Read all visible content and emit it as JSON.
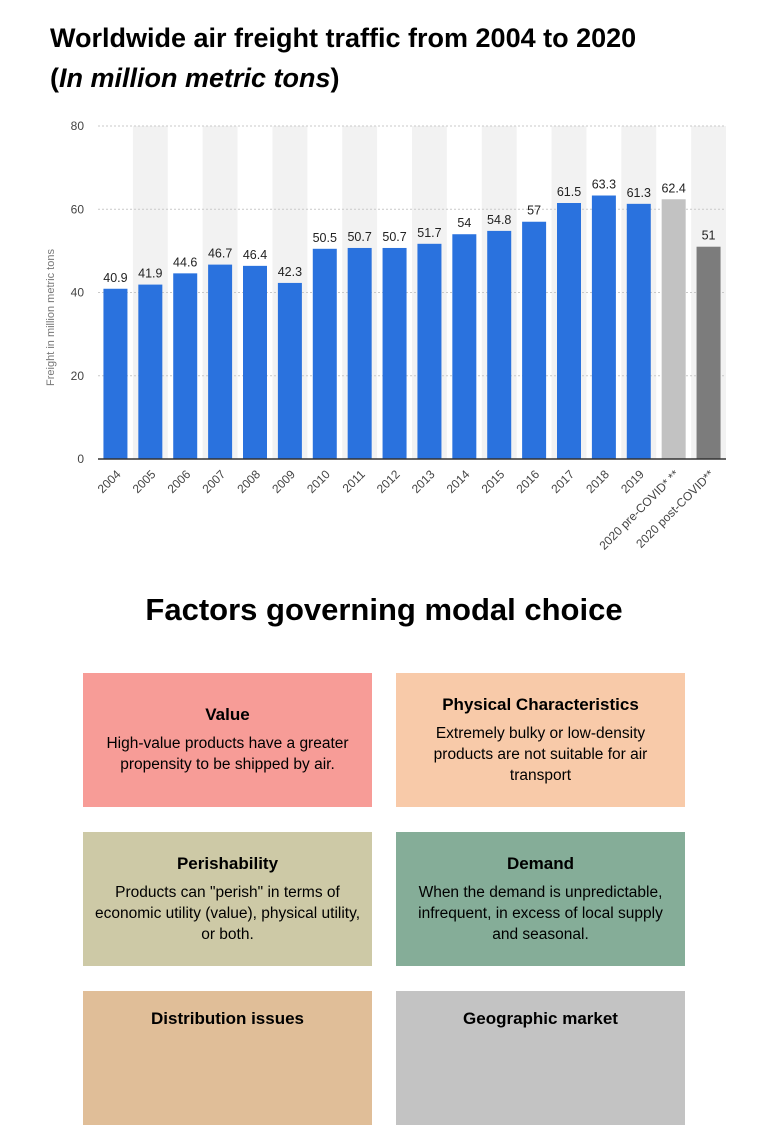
{
  "header": {
    "title_line1": "Worldwide air freight traffic from 2004 to 2020",
    "paren_open": "(",
    "title_line2": "In million metric tons",
    "paren_close": ")"
  },
  "chart_data": {
    "type": "bar",
    "title": "Worldwide air freight traffic from 2004 to 2020 (In million metric tons)",
    "xlabel": "",
    "ylabel": "Freight in million metric tons",
    "ylim": [
      0,
      80
    ],
    "yticks": [
      0,
      20,
      40,
      60,
      80
    ],
    "grid": true,
    "categories": [
      "2004",
      "2005",
      "2006",
      "2007",
      "2008",
      "2009",
      "2010",
      "2011",
      "2012",
      "2013",
      "2014",
      "2015",
      "2016",
      "2017",
      "2018",
      "2019",
      "2020 pre-COVID* **",
      "2020 post-COVID**"
    ],
    "values": [
      40.9,
      41.9,
      44.6,
      46.7,
      46.4,
      42.3,
      50.5,
      50.7,
      50.7,
      51.7,
      54,
      54.8,
      57,
      61.5,
      63.3,
      61.3,
      62.4,
      51
    ],
    "value_labels": [
      "40.9",
      "41.9",
      "44.6",
      "46.7",
      "46.4",
      "42.3",
      "50.5",
      "50.7",
      "50.7",
      "51.7",
      "54",
      "54.8",
      "57",
      "61.5",
      "63.3",
      "61.3",
      "62.4",
      "51"
    ],
    "colors": [
      "#2a72de",
      "#2a72de",
      "#2a72de",
      "#2a72de",
      "#2a72de",
      "#2a72de",
      "#2a72de",
      "#2a72de",
      "#2a72de",
      "#2a72de",
      "#2a72de",
      "#2a72de",
      "#2a72de",
      "#2a72de",
      "#2a72de",
      "#2a72de",
      "#c2c2c2",
      "#7c7c7c"
    ]
  },
  "factors": {
    "heading": "Factors governing modal choice",
    "cards": [
      {
        "title": "Value",
        "text": "High-value products have a greater propensity to be shipped by air."
      },
      {
        "title": "Physical Characteristics",
        "text": "Extremely bulky or low-density products are not suitable for air transport"
      },
      {
        "title": "Perishability",
        "text": "Products can \"perish\" in terms of economic utility (value), physical utility, or both."
      },
      {
        "title": "Demand",
        "text": "When the demand is unpredictable, infrequent, in excess of local supply and seasonal."
      },
      {
        "title": "Distribution issues",
        "text": ""
      },
      {
        "title": "Geographic market",
        "text": ""
      }
    ]
  }
}
